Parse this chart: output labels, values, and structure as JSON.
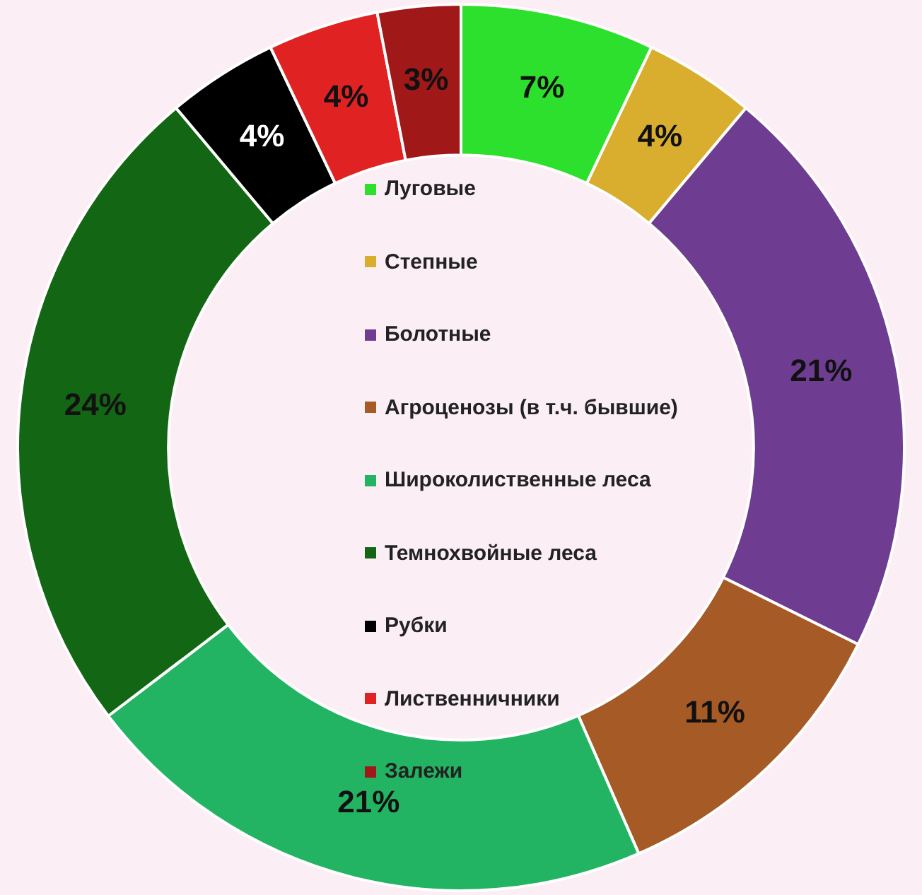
{
  "chart_data": {
    "type": "donut",
    "categories": [
      "Луговые",
      "Степные",
      "Болотные",
      "Агроценозы (в т.ч. бывшие)",
      "Широколиственные леса",
      "Темнохвойные леса",
      "Рубки",
      "Лиственничники",
      "Залежи"
    ],
    "values": [
      7,
      4,
      21,
      11,
      21,
      24,
      4,
      4,
      3
    ],
    "value_labels": [
      "7%",
      "4%",
      "21%",
      "11%",
      "21%",
      "24%",
      "4%",
      "4%",
      "3%"
    ],
    "colors": [
      "#2ee02e",
      "#d9ae2e",
      "#6e3d92",
      "#a65a25",
      "#22b463",
      "#136613",
      "#000000",
      "#e02222",
      "#a01818"
    ],
    "legend": "center"
  }
}
